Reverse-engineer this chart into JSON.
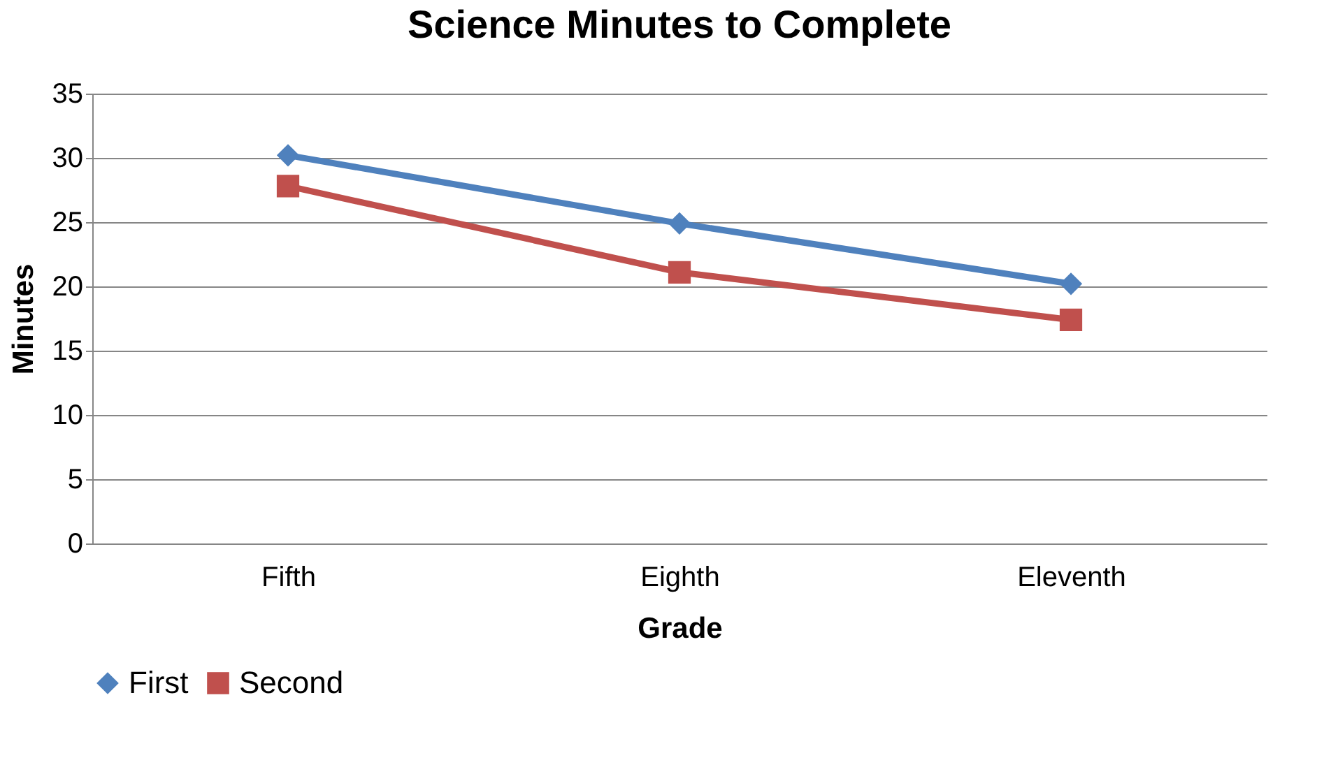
{
  "chart_data": {
    "type": "line",
    "title": "Science Minutes to Complete",
    "xlabel": "Grade",
    "ylabel": "Minutes",
    "categories": [
      "Fifth",
      "Eighth",
      "Eleventh"
    ],
    "series": [
      {
        "name": "First",
        "color": "#4f81bd",
        "marker": "diamond",
        "values": [
          30.2,
          24.9,
          20.2
        ]
      },
      {
        "name": "Second",
        "color": "#c0504d",
        "marker": "square",
        "values": [
          27.8,
          21.1,
          17.4
        ]
      }
    ],
    "ylim": [
      0,
      35
    ],
    "yticks": [
      0,
      5,
      10,
      15,
      20,
      25,
      30,
      35
    ],
    "grid": "y",
    "legend": "bottom",
    "line_style": "solid"
  }
}
